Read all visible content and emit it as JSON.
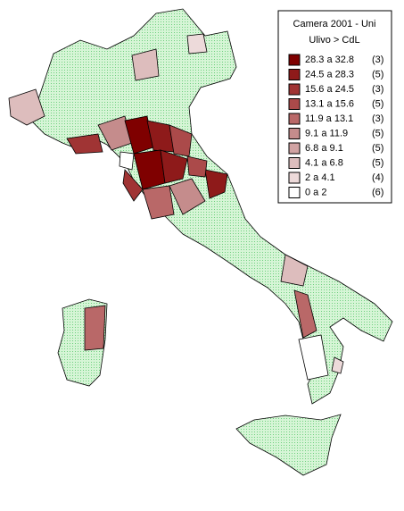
{
  "legend": {
    "title_lines": [
      "Camera 2001 - Uni",
      "Ulivo > CdL"
    ],
    "items": [
      {
        "label": "28.3 a 32.8",
        "count": "(3)",
        "color": "#7f0000"
      },
      {
        "label": "24.5 a 28.3",
        "count": "(5)",
        "color": "#8e1a1a"
      },
      {
        "label": "15.6 a 24.5",
        "count": "(3)",
        "color": "#a03434"
      },
      {
        "label": "13.1 a 15.6",
        "count": "(5)",
        "color": "#ab4a4a"
      },
      {
        "label": "11.9 a 13.1",
        "count": "(3)",
        "color": "#b96868"
      },
      {
        "label": "9.1 a 11.9",
        "count": "(5)",
        "color": "#c58c8c"
      },
      {
        "label": "6.8 a 9.1",
        "count": "(5)",
        "color": "#d1a3a3"
      },
      {
        "label": "4.1 a 6.8",
        "count": "(5)",
        "color": "#ddbdbd"
      },
      {
        "label": "2 a 4.1",
        "count": "(4)",
        "color": "#eddada"
      },
      {
        "label": "0 a 2",
        "count": "(6)",
        "color": "#ffffff"
      }
    ]
  }
}
